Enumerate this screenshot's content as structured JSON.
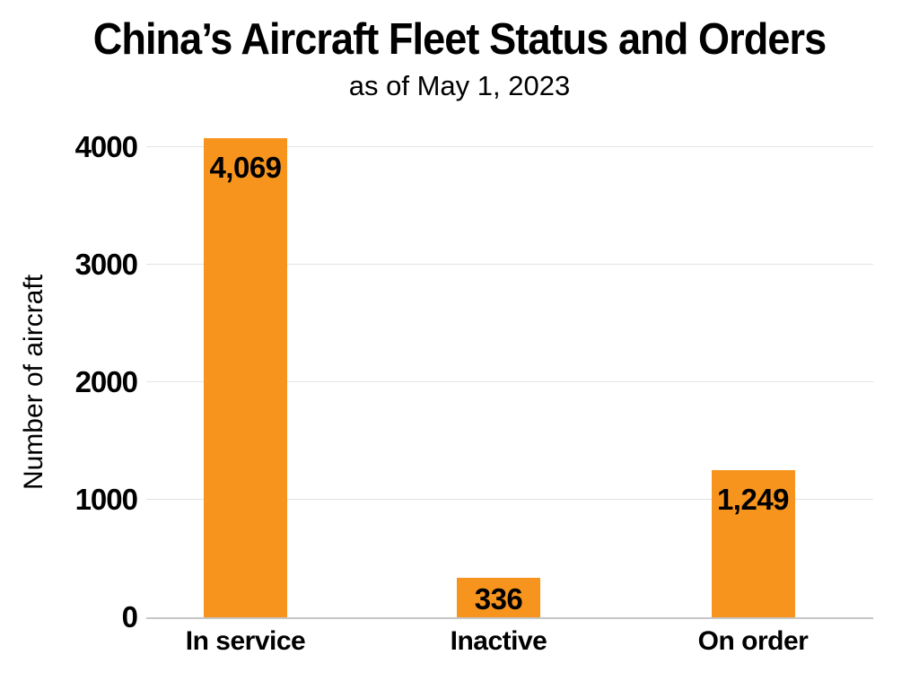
{
  "title": "China’s Aircraft Fleet Status and Orders",
  "subtitle": "as of May 1, 2023",
  "chart_data": {
    "type": "bar",
    "title": "China’s Aircraft Fleet Status and Orders",
    "subtitle": "as of May 1, 2023",
    "categories": [
      "In service",
      "Inactive",
      "On order"
    ],
    "values": [
      4069,
      336,
      1249
    ],
    "value_labels": [
      "4,069",
      "336",
      "1,249"
    ],
    "xlabel": "",
    "ylabel": "Number of aircraft",
    "ylim": [
      0,
      4000
    ],
    "yticks": [
      0,
      1000,
      2000,
      3000,
      4000
    ],
    "ytick_labels": [
      "0",
      "1000",
      "2000",
      "3000",
      "4000"
    ],
    "grid": true,
    "legend": "none",
    "bar_color": "#F7941E",
    "grid_color": "#e3e3e3",
    "baseline_color": "#c6c6c6",
    "text_color": "#000000"
  }
}
